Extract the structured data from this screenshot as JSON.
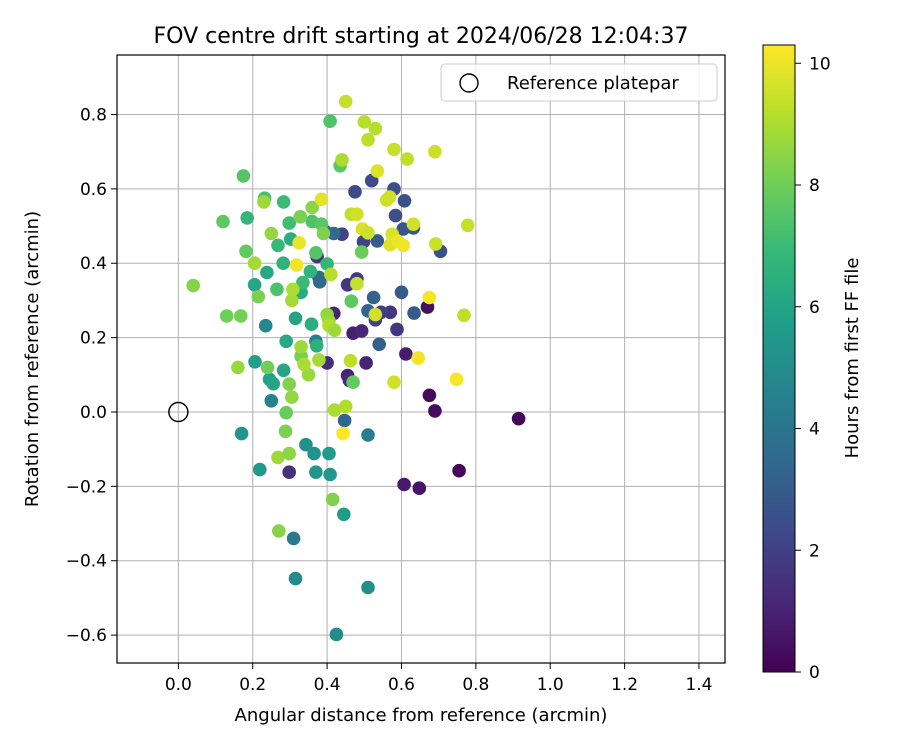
{
  "chart_data": {
    "type": "scatter",
    "title": "FOV centre drift starting at 2024/06/28 12:04:37",
    "xlabel": "Angular distance from reference (arcmin)",
    "ylabel": "Rotation from reference (arcmin)",
    "xlim": [
      -0.165,
      1.47
    ],
    "ylim": [
      -0.675,
      0.96
    ],
    "xticks": [
      0.0,
      0.2,
      0.4,
      0.6,
      0.8,
      1.0,
      1.2,
      1.4
    ],
    "xtick_labels": [
      "0.0",
      "0.2",
      "0.4",
      "0.6",
      "0.8",
      "1.0",
      "1.2",
      "1.4"
    ],
    "yticks": [
      -0.6,
      -0.4,
      -0.2,
      0.0,
      0.2,
      0.4,
      0.6,
      0.8
    ],
    "ytick_labels": [
      "−0.6",
      "−0.4",
      "−0.2",
      "0.0",
      "0.2",
      "0.4",
      "0.6",
      "0.8"
    ],
    "grid": true,
    "legend": {
      "placement": "top-right",
      "entries": [
        {
          "label": "Reference platepar",
          "marker": "open-circle"
        }
      ]
    },
    "reference_point": {
      "x": 0.0,
      "y": 0.0
    },
    "colorbar": {
      "label": "Hours from first FF file",
      "colormap": "viridis",
      "range": [
        0,
        10.3
      ],
      "ticks": [
        0,
        2,
        4,
        6,
        8,
        10
      ],
      "tick_labels": [
        "0",
        "2",
        "4",
        "6",
        "8",
        "10"
      ]
    },
    "colormap_stops": [
      "#440154",
      "#482878",
      "#3e4989",
      "#31688e",
      "#26828e",
      "#1f9e89",
      "#35b779",
      "#6ece58",
      "#b5de2b",
      "#fde725"
    ],
    "points": [
      {
        "x": 0.915,
        "y": -0.018,
        "h": 0.2
      },
      {
        "x": 0.755,
        "y": -0.158,
        "h": 0.2
      },
      {
        "x": 0.69,
        "y": 0.003,
        "h": 0.3
      },
      {
        "x": 0.675,
        "y": 0.045,
        "h": 0.3
      },
      {
        "x": 0.67,
        "y": 0.282,
        "h": 0.4
      },
      {
        "x": 0.648,
        "y": -0.205,
        "h": 0.6
      },
      {
        "x": 0.607,
        "y": -0.195,
        "h": 0.7
      },
      {
        "x": 0.612,
        "y": 0.156,
        "h": 0.8
      },
      {
        "x": 0.505,
        "y": 0.132,
        "h": 1.0
      },
      {
        "x": 0.47,
        "y": 0.212,
        "h": 0.9
      },
      {
        "x": 0.493,
        "y": 0.218,
        "h": 1.1
      },
      {
        "x": 0.455,
        "y": 0.098,
        "h": 1.0
      },
      {
        "x": 0.46,
        "y": 0.085,
        "h": 1.2
      },
      {
        "x": 0.418,
        "y": 0.265,
        "h": 1.0
      },
      {
        "x": 0.4,
        "y": 0.132,
        "h": 1.3
      },
      {
        "x": 0.298,
        "y": -0.162,
        "h": 1.5
      },
      {
        "x": 0.588,
        "y": 0.222,
        "h": 1.6
      },
      {
        "x": 0.57,
        "y": 0.268,
        "h": 1.7
      },
      {
        "x": 0.545,
        "y": 0.268,
        "h": 1.9
      },
      {
        "x": 0.53,
        "y": 0.248,
        "h": 2.0
      },
      {
        "x": 0.48,
        "y": 0.358,
        "h": 1.8
      },
      {
        "x": 0.455,
        "y": 0.342,
        "h": 1.7
      },
      {
        "x": 0.373,
        "y": 0.418,
        "h": 1.6
      },
      {
        "x": 0.44,
        "y": 0.478,
        "h": 2.1
      },
      {
        "x": 0.498,
        "y": 0.458,
        "h": 2.2
      },
      {
        "x": 0.52,
        "y": 0.622,
        "h": 2.3
      },
      {
        "x": 0.475,
        "y": 0.592,
        "h": 2.4
      },
      {
        "x": 0.58,
        "y": 0.6,
        "h": 2.5
      },
      {
        "x": 0.608,
        "y": 0.568,
        "h": 2.6
      },
      {
        "x": 0.584,
        "y": 0.528,
        "h": 2.5
      },
      {
        "x": 0.605,
        "y": 0.492,
        "h": 2.7
      },
      {
        "x": 0.632,
        "y": 0.495,
        "h": 2.8
      },
      {
        "x": 0.705,
        "y": 0.432,
        "h": 2.6
      },
      {
        "x": 0.6,
        "y": 0.322,
        "h": 2.9
      },
      {
        "x": 0.634,
        "y": 0.266,
        "h": 3.0
      },
      {
        "x": 0.54,
        "y": 0.182,
        "h": 3.1
      },
      {
        "x": 0.525,
        "y": 0.308,
        "h": 3.2
      },
      {
        "x": 0.51,
        "y": 0.272,
        "h": 3.3
      },
      {
        "x": 0.535,
        "y": 0.46,
        "h": 3.0
      },
      {
        "x": 0.395,
        "y": 0.485,
        "h": 3.1
      },
      {
        "x": 0.447,
        "y": -0.023,
        "h": 3.4
      },
      {
        "x": 0.418,
        "y": 0.48,
        "h": 3.5
      },
      {
        "x": 0.378,
        "y": 0.362,
        "h": 3.6
      },
      {
        "x": 0.38,
        "y": 0.35,
        "h": 3.5
      },
      {
        "x": 0.31,
        "y": -0.34,
        "h": 4.2
      },
      {
        "x": 0.51,
        "y": -0.062,
        "h": 4.4
      },
      {
        "x": 0.37,
        "y": 0.19,
        "h": 4.5
      },
      {
        "x": 0.25,
        "y": 0.03,
        "h": 4.6
      },
      {
        "x": 0.235,
        "y": 0.232,
        "h": 4.8
      },
      {
        "x": 0.315,
        "y": -0.448,
        "h": 4.9
      },
      {
        "x": 0.425,
        "y": -0.598,
        "h": 5.0
      },
      {
        "x": 0.51,
        "y": -0.472,
        "h": 5.1
      },
      {
        "x": 0.343,
        "y": -0.088,
        "h": 5.2
      },
      {
        "x": 0.365,
        "y": -0.112,
        "h": 5.3
      },
      {
        "x": 0.37,
        "y": -0.162,
        "h": 5.4
      },
      {
        "x": 0.408,
        "y": -0.168,
        "h": 5.5
      },
      {
        "x": 0.405,
        "y": -0.112,
        "h": 5.6
      },
      {
        "x": 0.445,
        "y": -0.275,
        "h": 5.7
      },
      {
        "x": 0.17,
        "y": -0.058,
        "h": 5.4
      },
      {
        "x": 0.219,
        "y": -0.155,
        "h": 5.6
      },
      {
        "x": 0.206,
        "y": 0.135,
        "h": 5.8
      },
      {
        "x": 0.245,
        "y": 0.088,
        "h": 5.9
      },
      {
        "x": 0.255,
        "y": 0.076,
        "h": 6.0
      },
      {
        "x": 0.283,
        "y": 0.112,
        "h": 6.1
      },
      {
        "x": 0.29,
        "y": 0.19,
        "h": 6.2
      },
      {
        "x": 0.315,
        "y": 0.252,
        "h": 6.0
      },
      {
        "x": 0.33,
        "y": 0.322,
        "h": 6.3
      },
      {
        "x": 0.358,
        "y": 0.236,
        "h": 6.4
      },
      {
        "x": 0.372,
        "y": 0.178,
        "h": 6.5
      },
      {
        "x": 0.205,
        "y": 0.342,
        "h": 6.1
      },
      {
        "x": 0.238,
        "y": 0.375,
        "h": 6.2
      },
      {
        "x": 0.282,
        "y": 0.4,
        "h": 6.6
      },
      {
        "x": 0.302,
        "y": 0.465,
        "h": 6.4
      },
      {
        "x": 0.355,
        "y": 0.378,
        "h": 6.7
      },
      {
        "x": 0.4,
        "y": 0.398,
        "h": 6.8
      },
      {
        "x": 0.268,
        "y": 0.448,
        "h": 6.9
      },
      {
        "x": 0.283,
        "y": 0.565,
        "h": 7.0
      },
      {
        "x": 0.298,
        "y": 0.508,
        "h": 7.1
      },
      {
        "x": 0.185,
        "y": 0.522,
        "h": 6.8
      },
      {
        "x": 0.232,
        "y": 0.575,
        "h": 7.2
      },
      {
        "x": 0.265,
        "y": 0.33,
        "h": 7.3
      },
      {
        "x": 0.335,
        "y": 0.348,
        "h": 7.0
      },
      {
        "x": 0.36,
        "y": 0.512,
        "h": 7.4
      },
      {
        "x": 0.37,
        "y": 0.428,
        "h": 7.5
      },
      {
        "x": 0.385,
        "y": 0.505,
        "h": 7.6
      },
      {
        "x": 0.408,
        "y": 0.782,
        "h": 7.4
      },
      {
        "x": 0.435,
        "y": 0.662,
        "h": 7.6
      },
      {
        "x": 0.47,
        "y": 0.08,
        "h": 7.8
      },
      {
        "x": 0.465,
        "y": 0.298,
        "h": 7.7
      },
      {
        "x": 0.493,
        "y": 0.43,
        "h": 7.9
      },
      {
        "x": 0.175,
        "y": 0.635,
        "h": 7.5
      },
      {
        "x": 0.182,
        "y": 0.432,
        "h": 7.8
      },
      {
        "x": 0.12,
        "y": 0.512,
        "h": 7.7
      },
      {
        "x": 0.13,
        "y": 0.258,
        "h": 8.0
      },
      {
        "x": 0.168,
        "y": 0.258,
        "h": 8.1
      },
      {
        "x": 0.215,
        "y": 0.31,
        "h": 8.2
      },
      {
        "x": 0.24,
        "y": 0.12,
        "h": 8.0
      },
      {
        "x": 0.29,
        "y": -0.002,
        "h": 7.9
      },
      {
        "x": 0.288,
        "y": -0.052,
        "h": 8.2
      },
      {
        "x": 0.298,
        "y": 0.075,
        "h": 8.3
      },
      {
        "x": 0.33,
        "y": 0.15,
        "h": 8.1
      },
      {
        "x": 0.415,
        "y": -0.235,
        "h": 8.3
      },
      {
        "x": 0.27,
        "y": -0.32,
        "h": 8.4
      },
      {
        "x": 0.04,
        "y": 0.34,
        "h": 8.4
      },
      {
        "x": 0.328,
        "y": 0.525,
        "h": 8.2
      },
      {
        "x": 0.36,
        "y": 0.55,
        "h": 8.5
      },
      {
        "x": 0.39,
        "y": 0.48,
        "h": 8.3
      },
      {
        "x": 0.4,
        "y": 0.262,
        "h": 8.6
      },
      {
        "x": 0.35,
        "y": 0.1,
        "h": 8.7
      },
      {
        "x": 0.305,
        "y": 0.04,
        "h": 8.6
      },
      {
        "x": 0.268,
        "y": -0.122,
        "h": 8.8
      },
      {
        "x": 0.298,
        "y": -0.112,
        "h": 8.5
      },
      {
        "x": 0.16,
        "y": 0.12,
        "h": 8.7
      },
      {
        "x": 0.205,
        "y": 0.4,
        "h": 8.9
      },
      {
        "x": 0.25,
        "y": 0.48,
        "h": 8.6
      },
      {
        "x": 0.23,
        "y": 0.565,
        "h": 8.8
      },
      {
        "x": 0.305,
        "y": 0.3,
        "h": 8.9
      },
      {
        "x": 0.308,
        "y": 0.33,
        "h": 9.0
      },
      {
        "x": 0.33,
        "y": 0.175,
        "h": 8.8
      },
      {
        "x": 0.338,
        "y": 0.128,
        "h": 9.0
      },
      {
        "x": 0.378,
        "y": 0.14,
        "h": 8.9
      },
      {
        "x": 0.405,
        "y": 0.245,
        "h": 8.7
      },
      {
        "x": 0.405,
        "y": 0.232,
        "h": 9.1
      },
      {
        "x": 0.41,
        "y": 0.37,
        "h": 9.2
      },
      {
        "x": 0.42,
        "y": 0.005,
        "h": 9.0
      },
      {
        "x": 0.45,
        "y": 0.015,
        "h": 9.1
      },
      {
        "x": 0.42,
        "y": 0.22,
        "h": 8.8
      },
      {
        "x": 0.463,
        "y": 0.138,
        "h": 9.3
      },
      {
        "x": 0.44,
        "y": 0.678,
        "h": 9.0
      },
      {
        "x": 0.45,
        "y": 0.835,
        "h": 9.4
      },
      {
        "x": 0.5,
        "y": 0.78,
        "h": 9.2
      },
      {
        "x": 0.51,
        "y": 0.732,
        "h": 9.3
      },
      {
        "x": 0.53,
        "y": 0.762,
        "h": 9.2
      },
      {
        "x": 0.58,
        "y": 0.706,
        "h": 9.4
      },
      {
        "x": 0.615,
        "y": 0.68,
        "h": 9.3
      },
      {
        "x": 0.69,
        "y": 0.7,
        "h": 9.5
      },
      {
        "x": 0.778,
        "y": 0.502,
        "h": 9.4
      },
      {
        "x": 0.692,
        "y": 0.452,
        "h": 9.5
      },
      {
        "x": 0.768,
        "y": 0.26,
        "h": 9.3
      },
      {
        "x": 0.58,
        "y": 0.08,
        "h": 9.6
      },
      {
        "x": 0.575,
        "y": 0.478,
        "h": 9.7
      },
      {
        "x": 0.56,
        "y": 0.57,
        "h": 9.5
      },
      {
        "x": 0.53,
        "y": 0.262,
        "h": 9.6
      },
      {
        "x": 0.48,
        "y": 0.345,
        "h": 9.4
      },
      {
        "x": 0.465,
        "y": 0.532,
        "h": 9.3
      },
      {
        "x": 0.48,
        "y": 0.532,
        "h": 9.6
      },
      {
        "x": 0.495,
        "y": 0.492,
        "h": 9.7
      },
      {
        "x": 0.51,
        "y": 0.482,
        "h": 9.5
      },
      {
        "x": 0.535,
        "y": 0.648,
        "h": 9.8
      },
      {
        "x": 0.568,
        "y": 0.578,
        "h": 9.6
      },
      {
        "x": 0.57,
        "y": 0.45,
        "h": 9.8
      },
      {
        "x": 0.632,
        "y": 0.505,
        "h": 9.6
      },
      {
        "x": 0.59,
        "y": 0.458,
        "h": 10.0
      },
      {
        "x": 0.605,
        "y": 0.448,
        "h": 10.1
      },
      {
        "x": 0.645,
        "y": 0.145,
        "h": 10.1
      },
      {
        "x": 0.675,
        "y": 0.308,
        "h": 10.2
      },
      {
        "x": 0.748,
        "y": 0.088,
        "h": 10.2
      },
      {
        "x": 0.443,
        "y": -0.058,
        "h": 10.3
      },
      {
        "x": 0.318,
        "y": 0.395,
        "h": 10.1
      },
      {
        "x": 0.325,
        "y": 0.455,
        "h": 10.0
      },
      {
        "x": 0.385,
        "y": 0.572,
        "h": 9.9
      }
    ]
  }
}
